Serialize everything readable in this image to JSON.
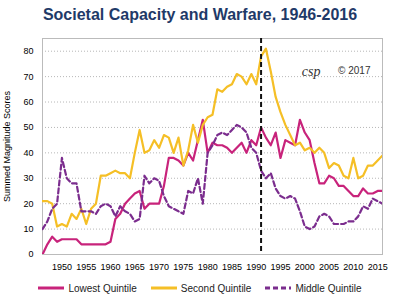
{
  "chart_data": {
    "type": "line",
    "title": "Societal Capacity and Warfare, 1946-2016",
    "y_label": "Summed Magnitude Scores",
    "annotations": [
      "csp",
      "© 2017"
    ],
    "vline": 1991,
    "x": [
      1946,
      1947,
      1948,
      1949,
      1950,
      1951,
      1952,
      1953,
      1954,
      1955,
      1956,
      1957,
      1958,
      1959,
      1960,
      1961,
      1962,
      1963,
      1964,
      1965,
      1966,
      1967,
      1968,
      1969,
      1970,
      1971,
      1972,
      1973,
      1974,
      1975,
      1976,
      1977,
      1978,
      1979,
      1980,
      1981,
      1982,
      1983,
      1984,
      1985,
      1986,
      1987,
      1988,
      1989,
      1990,
      1991,
      1992,
      1993,
      1994,
      1995,
      1996,
      1997,
      1998,
      1999,
      2000,
      2001,
      2002,
      2003,
      2004,
      2005,
      2006,
      2007,
      2008,
      2009,
      2010,
      2011,
      2012,
      2013,
      2014,
      2015,
      2016
    ],
    "series": [
      {
        "name": "Lowest Quintile",
        "color": "#c8237b",
        "line_style": "solid",
        "values": [
          0,
          4,
          7,
          5,
          6,
          6,
          6,
          6,
          4,
          4,
          4,
          4,
          4,
          4,
          5,
          14,
          16,
          20,
          22,
          24,
          25,
          18,
          20,
          20,
          20,
          27,
          38,
          38,
          37,
          35,
          40,
          37,
          45,
          53,
          40,
          44,
          43,
          43,
          42,
          40,
          42,
          44,
          40,
          45,
          43,
          50,
          46,
          43,
          48,
          38,
          45,
          44,
          43,
          53,
          48,
          45,
          36,
          28,
          28,
          31,
          30,
          27,
          27,
          25,
          23,
          23,
          26,
          24,
          24,
          25,
          25
        ]
      },
      {
        "name": "Second Quintile",
        "color": "#f5bf26",
        "line_style": "solid",
        "values": [
          21,
          21,
          20,
          11,
          12,
          11,
          16,
          14,
          18,
          12,
          18,
          20,
          31,
          31,
          32,
          33,
          32,
          32,
          30,
          40,
          49,
          40,
          41,
          45,
          42,
          47,
          46,
          40,
          46,
          35,
          41,
          51,
          44,
          51,
          54,
          55,
          65,
          64,
          66,
          67,
          71,
          70,
          67,
          71,
          67,
          78,
          81,
          72,
          62,
          56,
          51,
          47,
          43,
          44,
          41,
          42,
          40,
          42,
          40,
          34,
          36,
          35,
          31,
          30,
          38,
          30,
          31,
          35,
          35,
          37,
          39
        ]
      },
      {
        "name": "Middle Quintile",
        "color": "#7b2d8e",
        "line_style": "dashed",
        "values": [
          10,
          13,
          18,
          20,
          38,
          30,
          28,
          28,
          17,
          17,
          17,
          16,
          19,
          20,
          19,
          15,
          19,
          17,
          16,
          13,
          14,
          31,
          28,
          30,
          29,
          23,
          19,
          18,
          17,
          16,
          25,
          24,
          30,
          20,
          40,
          43,
          47,
          48,
          47,
          49,
          51,
          50,
          48,
          42,
          40,
          33,
          30,
          32,
          26,
          23,
          22,
          23,
          22,
          17,
          11,
          10,
          11,
          15,
          16,
          15,
          12,
          12,
          12,
          13,
          13,
          15,
          19,
          18,
          22,
          21,
          20
        ]
      }
    ],
    "xlim": [
      1946,
      2016
    ],
    "xticks": [
      1950,
      1955,
      1960,
      1965,
      1970,
      1975,
      1980,
      1985,
      1990,
      1995,
      2000,
      2005,
      2010,
      2015
    ],
    "ylim": [
      0,
      85
    ],
    "yticks": [
      0,
      10,
      20,
      30,
      40,
      50,
      60,
      70,
      80
    ],
    "grid": true,
    "legend": "bottom"
  }
}
